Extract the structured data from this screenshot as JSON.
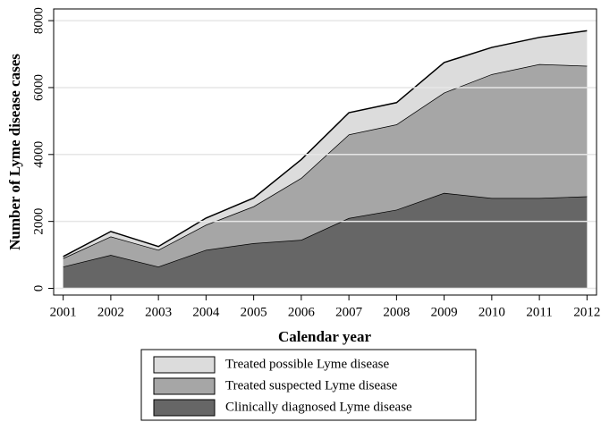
{
  "chart_data": {
    "type": "stacked-area",
    "x_label": "Calendar year",
    "y_label": "Number of Lyme disease cases",
    "x": [
      2001,
      2002,
      2003,
      2004,
      2005,
      2006,
      2007,
      2008,
      2009,
      2010,
      2011,
      2012
    ],
    "series": [
      {
        "name": "Clinically diagnosed Lyme disease",
        "color": "#666666",
        "values": [
          650,
          1000,
          650,
          1150,
          1350,
          1450,
          2100,
          2350,
          2850,
          2700,
          2700,
          2750
        ]
      },
      {
        "name": "Treated suspected Lyme disease",
        "color": "#a6a6a6",
        "values": [
          250,
          550,
          500,
          750,
          1100,
          1850,
          2500,
          2550,
          3000,
          3700,
          4000,
          3900
        ]
      },
      {
        "name": "Treated possible Lyme disease",
        "color": "#dcdcdc",
        "values": [
          50,
          150,
          100,
          200,
          250,
          550,
          650,
          650,
          900,
          800,
          800,
          1050
        ]
      }
    ],
    "xlim": [
      2000.8,
      2012.2
    ],
    "xticks": [
      2001,
      2002,
      2003,
      2004,
      2005,
      2006,
      2007,
      2008,
      2009,
      2010,
      2011,
      2012
    ],
    "ylim": [
      -200,
      8350
    ],
    "yticks": [
      0,
      2000,
      4000,
      6000,
      8000
    ],
    "grid": true
  }
}
